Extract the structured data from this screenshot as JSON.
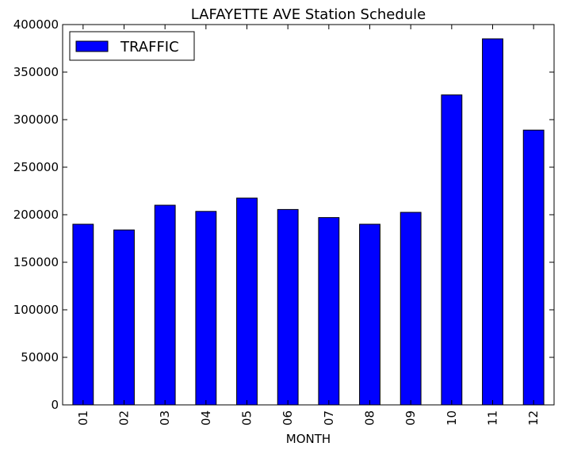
{
  "chart_data": {
    "type": "bar",
    "title": "LAFAYETTE AVE Station Schedule",
    "xlabel": "MONTH",
    "ylabel": "",
    "categories": [
      "01",
      "02",
      "03",
      "04",
      "05",
      "06",
      "07",
      "08",
      "09",
      "10",
      "11",
      "12"
    ],
    "series": [
      {
        "name": "TRAFFIC",
        "color": "#0000ff",
        "values": [
          190000,
          184000,
          210000,
          203500,
          217500,
          205500,
          197000,
          190000,
          202500,
          326000,
          385000,
          289000
        ]
      }
    ],
    "ylim": [
      0,
      400000
    ],
    "yticks": [
      "0",
      "50000",
      "100000",
      "150000",
      "200000",
      "250000",
      "300000",
      "350000",
      "400000"
    ],
    "grid": false,
    "legend_position": "top-left"
  }
}
